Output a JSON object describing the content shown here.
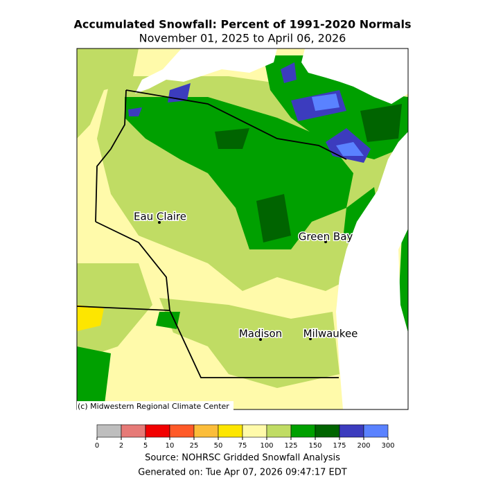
{
  "header": {
    "title": "Accumulated Snowfall: Percent of 1991-2020 Normals",
    "subtitle": "November 01, 2025 to April 06, 2026"
  },
  "map": {
    "cities": [
      {
        "label": "Eau Claire"
      },
      {
        "label": "Green Bay"
      },
      {
        "label": "Madison"
      },
      {
        "label": "Milwaukee"
      }
    ],
    "credit": "(c) Midwestern Regional Climate Center"
  },
  "legend": {
    "ticks": [
      0,
      2,
      5,
      10,
      25,
      50,
      75,
      100,
      125,
      150,
      175,
      200,
      300
    ],
    "colors": [
      "#bebebe",
      "#e67a77",
      "#f20000",
      "#ff5a28",
      "#fbbd3a",
      "#fde600",
      "#fffaaa",
      "#c0dc64",
      "#00a000",
      "#006400",
      "#3c3cbe",
      "#5a82ff"
    ]
  },
  "footer": {
    "source": "Source: NOHRSC Gridded Snowfall Analysis",
    "generated": "Generated on: Tue Apr 07, 2026 09:47:17 EDT"
  }
}
